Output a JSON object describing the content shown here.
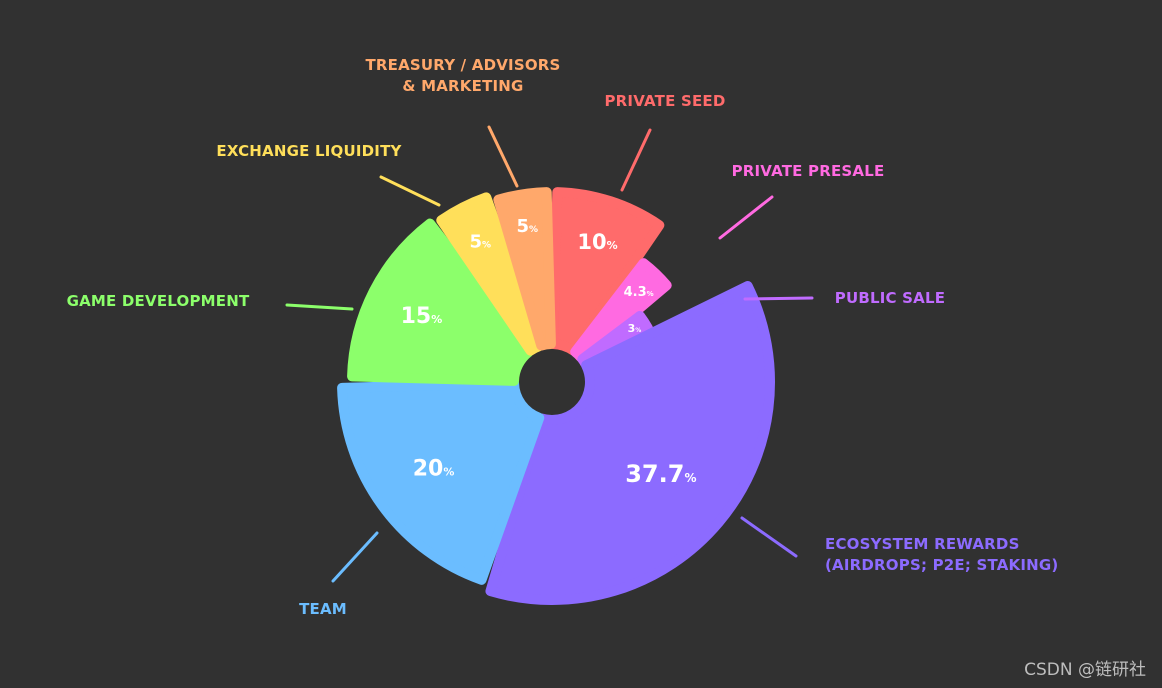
{
  "chart_data": {
    "type": "pie",
    "style": "exploded-donut",
    "slices": [
      {
        "name": "PRIVATE SEED",
        "value": 10,
        "value_label": "10",
        "color": "#FF6B6B"
      },
      {
        "name": "PRIVATE PRESALE",
        "value": 4.3,
        "value_label": "4.3",
        "color": "#FF6AE1"
      },
      {
        "name": "PUBLIC SALE",
        "value": 3,
        "value_label": "3",
        "color": "#C06BFF"
      },
      {
        "name": "ECOSYSTEM REWARDS",
        "name_line2": "(AIRDROPS; P2E; STAKING)",
        "value": 37.7,
        "value_label": "37.7",
        "color": "#8C6BFF"
      },
      {
        "name": "TEAM",
        "value": 20,
        "value_label": "20",
        "color": "#6BBDFF"
      },
      {
        "name": "GAME DEVELOPMENT",
        "value": 15,
        "value_label": "15",
        "color": "#8CFF6B"
      },
      {
        "name": "EXCHANGE LIQUIDITY",
        "value": 5,
        "value_label": "5",
        "color": "#FFDF5A"
      },
      {
        "name": "TREASURY / ADVISORS",
        "name_line2": "& MARKETING",
        "value": 5,
        "value_label": "5",
        "color": "#FFA86B"
      }
    ],
    "value_suffix": "%"
  },
  "watermark": "CSDN @链研社",
  "background_color": "#313131"
}
